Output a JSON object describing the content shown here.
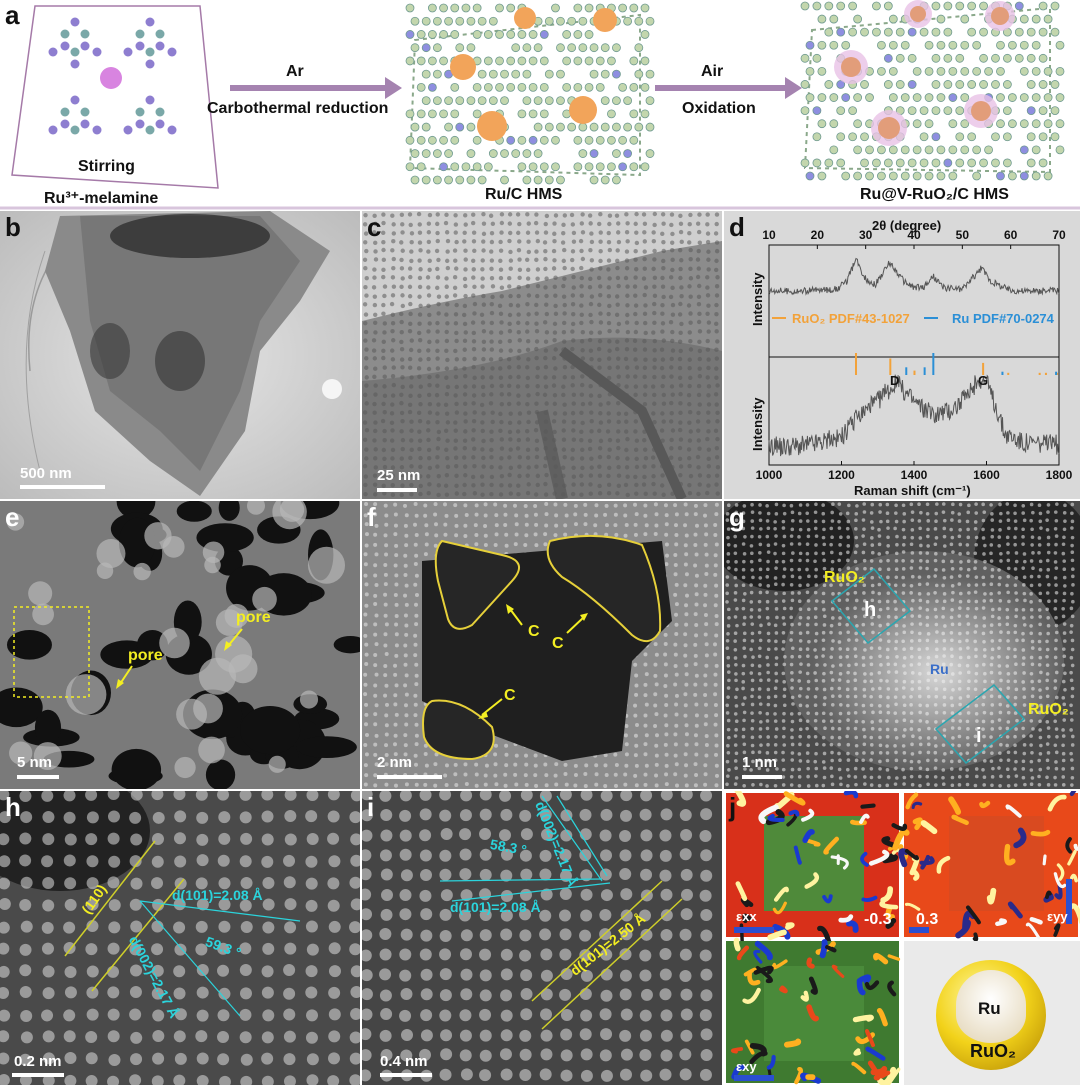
{
  "panels": {
    "a": {
      "letter": "a",
      "stir_label": "Stirring",
      "precursor_label": "Ru³⁺-melamine",
      "step1_top": "Ar",
      "step1_bottom": "Carbothermal reduction",
      "step2_top": "Air",
      "step2_bottom": "Oxidation",
      "product1_label": "Ru/C HMS",
      "product2_label": "Ru@V-RuO₂/C HMS"
    },
    "b": {
      "letter": "b",
      "scale": "500 nm"
    },
    "c": {
      "letter": "c",
      "scale": "25 nm"
    },
    "d": {
      "letter": "d"
    },
    "e": {
      "letter": "e",
      "scale": "5 nm",
      "pore1": "pore",
      "pore2": "pore"
    },
    "f": {
      "letter": "f",
      "scale": "2 nm",
      "c1": "C",
      "c2": "C",
      "c3": "C"
    },
    "g": {
      "letter": "g",
      "scale": "1 nm",
      "ruo2_top": "RuO₂",
      "ruo2_bottom": "RuO₂",
      "ru": "Ru",
      "h_box": "h",
      "i_box": "i"
    },
    "h": {
      "letter": "h",
      "scale": "0.2 nm",
      "plane": "(110)",
      "d101": "d(101)=2.08 Å",
      "d002": "d(002)=2.17 Å",
      "angle": "59.3 °"
    },
    "i": {
      "letter": "i",
      "scale": "0.4 nm",
      "angle": "58.3 °",
      "d002": "d(002)=2.17 Å",
      "d101a": "d(101)=2.08 Å",
      "d101b": "d(101)=2.50 Å"
    },
    "j": {
      "letter": "j",
      "exx": "εxx",
      "eyy": "εyy",
      "exy": "εxy",
      "neg": "-0.3",
      "pos": "0.3",
      "ru": "Ru",
      "ruo2": "RuO₂"
    }
  },
  "chart_data": [
    {
      "type": "line",
      "title": "",
      "xlabel": "2θ (degree)",
      "ylabel": "Intensity",
      "xlim": [
        10,
        70
      ],
      "x_ticks": [
        10,
        20,
        30,
        40,
        50,
        60,
        70
      ],
      "series": [
        {
          "name": "",
          "x": [
            10,
            15,
            20,
            24,
            26,
            28,
            30,
            32,
            35,
            38,
            40,
            42,
            44,
            46,
            50,
            54,
            56,
            60,
            65,
            70
          ],
          "y": [
            0.3,
            0.28,
            0.3,
            0.32,
            0.45,
            0.85,
            0.5,
            0.4,
            0.8,
            0.45,
            0.35,
            0.35,
            0.55,
            0.35,
            0.32,
            0.7,
            0.45,
            0.3,
            0.28,
            0.3
          ]
        }
      ],
      "references": [
        {
          "name": "RuO₂ PDF#43-1027",
          "color": "#f2a23a",
          "positions": [
            28.0,
            35.1,
            40.1,
            54.3,
            59.5,
            66.0,
            67.3,
            69.6
          ],
          "heights": [
            1.0,
            0.75,
            0.2,
            0.55,
            0.1,
            0.1,
            0.1,
            0.1
          ]
        },
        {
          "name": "Ru PDF#70-0274",
          "color": "#2b8fd6",
          "positions": [
            38.4,
            42.2,
            44.0,
            58.3,
            69.4
          ],
          "heights": [
            0.35,
            0.35,
            1.0,
            0.15,
            0.15
          ]
        }
      ]
    },
    {
      "type": "line",
      "title": "",
      "xlabel": "Raman shift (cm⁻¹)",
      "ylabel": "Intensity",
      "xlim": [
        1000,
        1800
      ],
      "x_ticks": [
        1000,
        1200,
        1400,
        1600,
        1800
      ],
      "annotations": [
        "D",
        "G"
      ],
      "series": [
        {
          "name": "",
          "x": [
            1000,
            1100,
            1200,
            1250,
            1300,
            1350,
            1400,
            1450,
            1500,
            1550,
            1580,
            1600,
            1630,
            1650,
            1700,
            1800
          ],
          "y": [
            0.2,
            0.22,
            0.3,
            0.55,
            0.7,
            0.9,
            0.7,
            0.55,
            0.6,
            0.75,
            0.95,
            0.9,
            0.6,
            0.35,
            0.25,
            0.22
          ]
        }
      ]
    }
  ]
}
